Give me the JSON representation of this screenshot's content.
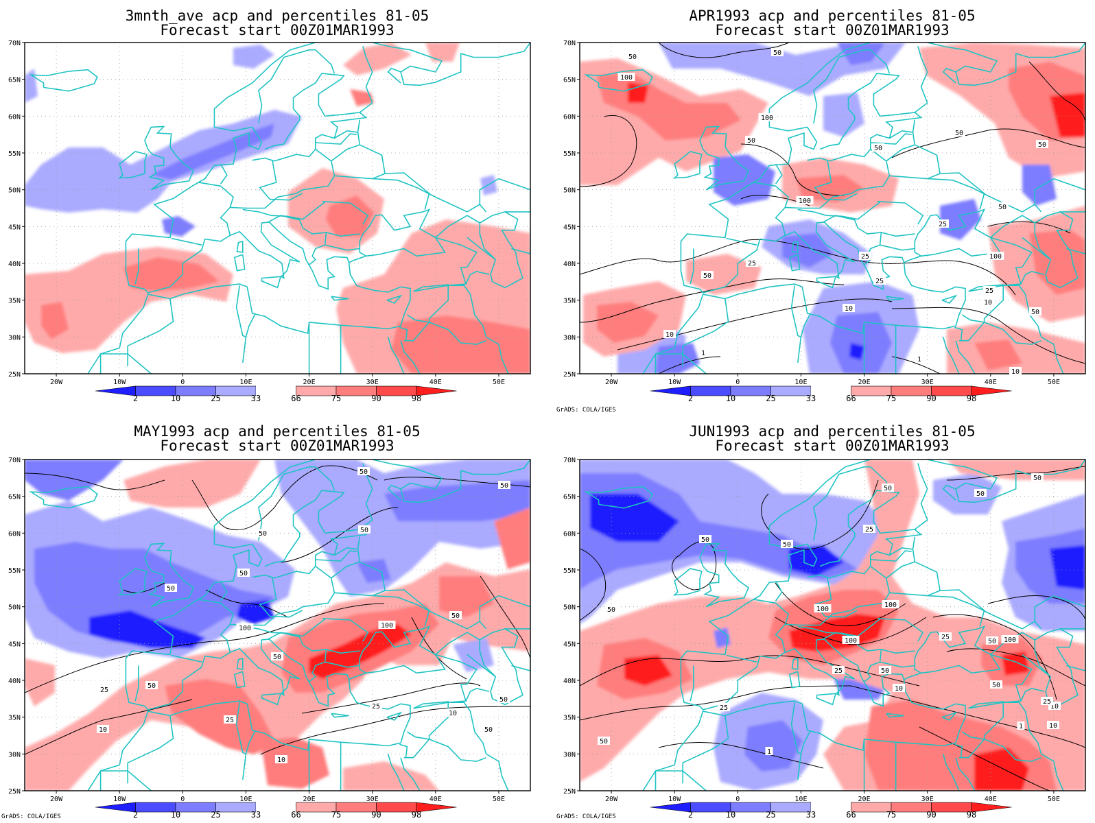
{
  "panels": [
    {
      "id": "ave",
      "title1": "3mnth_ave acp and percentiles 81-05",
      "title2": "Forecast start 00Z01MAR1993",
      "credit": ""
    },
    {
      "id": "apr",
      "title1": "APR1993 acp and percentiles 81-05",
      "title2": "Forecast start 00Z01MAR1993",
      "credit": "GrADS: COLA/IGES"
    },
    {
      "id": "may",
      "title1": "MAY1993 acp and percentiles 81-05",
      "title2": "Forecast start 00Z01MAR1993",
      "credit": "GrADS: COLA/IGES"
    },
    {
      "id": "jun",
      "title1": "JUN1993 acp and percentiles 81-05",
      "title2": "Forecast start 00Z01MAR1993",
      "credit": "GrADS: COLA/IGES"
    }
  ],
  "axes": {
    "lon_labels": [
      "20W",
      "10W",
      "0",
      "10E",
      "20E",
      "30E",
      "40E",
      "50E"
    ],
    "lon_values": [
      -20,
      -10,
      0,
      10,
      20,
      30,
      40,
      50
    ],
    "lat_labels": [
      "70N",
      "65N",
      "60N",
      "55N",
      "50N",
      "45N",
      "40N",
      "35N",
      "30N",
      "25N"
    ],
    "lat_values": [
      70,
      65,
      60,
      55,
      50,
      45,
      40,
      35,
      30,
      25
    ],
    "lon_range": [
      -25,
      55
    ],
    "lat_range": [
      25,
      70
    ]
  },
  "colorbar": {
    "labels": [
      "2",
      "10",
      "25",
      "33",
      "66",
      "75",
      "90",
      "98"
    ],
    "colors": [
      "#1e1eff",
      "#4b4bff",
      "#7d7dff",
      "#aaaaff",
      "#ffffff",
      "#ffaaaa",
      "#ff7d7d",
      "#ff4b4b",
      "#ff1e1e"
    ]
  },
  "colors": {
    "coastline": "#1fc3c3",
    "contour": "#000000",
    "grid": "#9a9a9a",
    "dry": "#7d7dff",
    "wet": "#ff7d7d"
  },
  "contour_labels": {
    "ave": [],
    "apr": [
      "50",
      "50",
      "100",
      "100",
      "50",
      "50",
      "50",
      "100",
      "50",
      "25",
      "50",
      "25",
      "25",
      "10",
      "50",
      "25",
      "10",
      "10",
      "1",
      "1",
      "10",
      "50",
      "100",
      "25"
    ],
    "may": [
      "50",
      "50",
      "50",
      "50",
      "50",
      "100",
      "50",
      "50",
      "100",
      "50",
      "25",
      "50",
      "25",
      "10",
      "10",
      "10",
      "25",
      "50",
      "50"
    ],
    "jun": [
      "50",
      "50",
      "50",
      "50",
      "50",
      "25",
      "50",
      "100",
      "100",
      "100",
      "50",
      "25",
      "25",
      "50",
      "10",
      "25",
      "10",
      "1",
      "1",
      "50",
      "100",
      "10",
      "25",
      "50"
    ]
  }
}
